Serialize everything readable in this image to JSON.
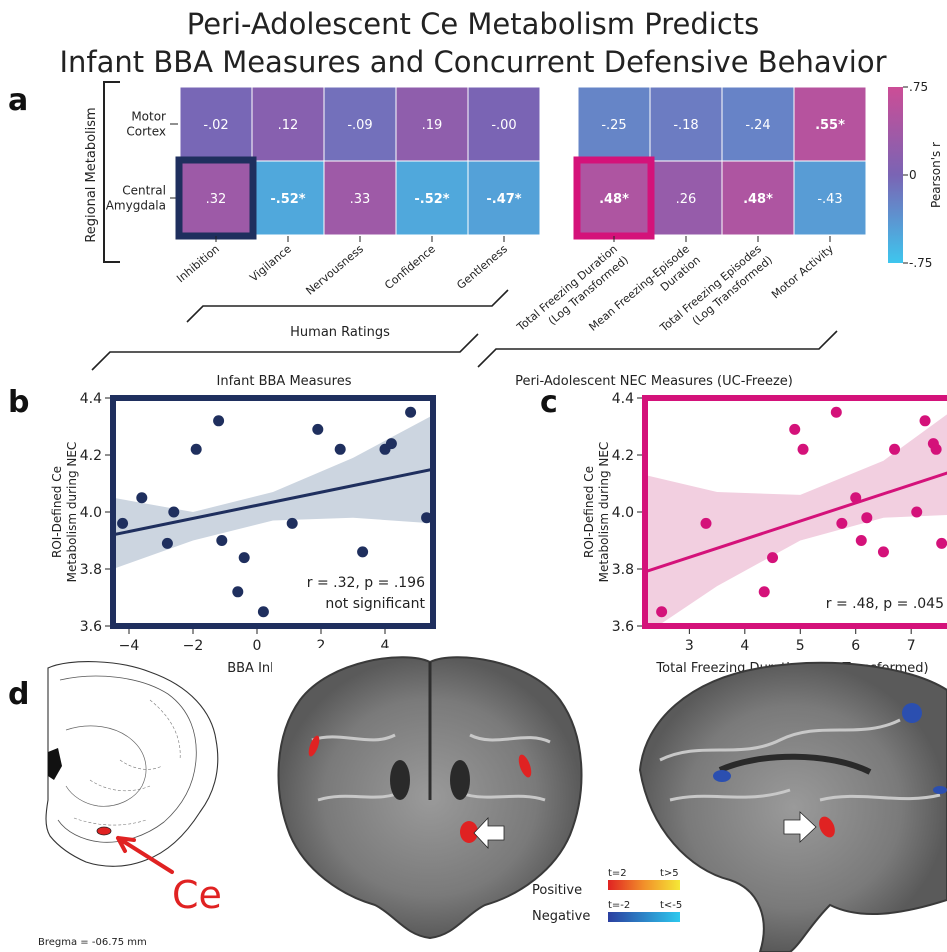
{
  "title": {
    "line1": "Peri-Adolescent Ce Metabolism Predicts",
    "line2": "Infant BBA Measures and Concurrent Defensive Behavior"
  },
  "panels": {
    "a": "a",
    "b": "b",
    "c": "c",
    "d": "d"
  },
  "heatmap": {
    "y_group_label": "Regional Metabolism",
    "rows": [
      "Motor\nCortex",
      "Central\nAmygdala"
    ],
    "columns": [
      "Inhibition",
      "Vigilance",
      "Nervousness",
      "Confidence",
      "Gentleness",
      "Total Freezing Duration\n(Log Transformed)",
      "Mean Freezing-Episode\nDuration",
      "Total Freezing Episodes\n(Log Transformed)",
      "Motor Activity"
    ],
    "groups": {
      "human_ratings": "Human Ratings",
      "infant_bba": "Infant BBA Measures",
      "nec": "Peri-Adolescent NEC Measures (UC-Freeze)"
    },
    "colorbar": {
      "label": "Pearson's r",
      "ticks": [
        ".75",
        "0",
        "-.75"
      ],
      "min": -0.75,
      "max": 0.75,
      "colors": [
        "#3ec6ee",
        "#7a64b4",
        "#cc4d96"
      ]
    }
  },
  "chart_data": [
    {
      "type": "heatmap",
      "rows": [
        "Motor Cortex",
        "Central Amygdala"
      ],
      "columns": [
        "Inhibition",
        "Vigilance",
        "Nervousness",
        "Confidence",
        "Gentleness",
        "Total Freezing Duration (Log Transformed)",
        "Mean Freezing-Episode Duration",
        "Total Freezing Episodes (Log Transformed)",
        "Motor Activity"
      ],
      "values": [
        [
          -0.02,
          0.12,
          -0.09,
          0.19,
          -0.0,
          -0.25,
          -0.18,
          -0.24,
          0.55
        ],
        [
          0.32,
          -0.52,
          0.33,
          -0.52,
          -0.47,
          0.48,
          0.26,
          0.48,
          -0.43
        ]
      ],
      "labels": [
        [
          "-.02",
          ".12",
          "-.09",
          ".19",
          "-.00",
          "-.25",
          "-.18",
          "-.24",
          ".55*"
        ],
        [
          ".32",
          "-.52*",
          ".33",
          "-.52*",
          "-.47*",
          ".48*",
          ".26",
          ".48*",
          "-.43"
        ]
      ],
      "bold": [
        [
          false,
          false,
          false,
          false,
          false,
          false,
          false,
          false,
          true
        ],
        [
          false,
          true,
          false,
          true,
          true,
          true,
          false,
          true,
          false
        ]
      ],
      "highlights": [
        {
          "row": 1,
          "col": 0,
          "color": "#1f2f5e"
        },
        {
          "row": 1,
          "col": 5,
          "color": "#d4127a"
        }
      ]
    },
    {
      "type": "scatter",
      "xlabel": "BBA Inhibition",
      "ylabel": "ROI-Defined Ce\nMetabolism during NEC",
      "xlim": [
        -4.5,
        5.5
      ],
      "ylim": [
        3.6,
        4.4
      ],
      "xticks": [
        -4,
        -2,
        0,
        2,
        4
      ],
      "yticks": [
        3.6,
        3.8,
        4.0,
        4.2,
        4.4
      ],
      "annotation": "r = .32,  p = .196",
      "annotation2": "not significant",
      "color": "#1f2f5e",
      "band_color": "#ccd5e0",
      "points": [
        [
          -4.2,
          3.96
        ],
        [
          -3.6,
          4.05
        ],
        [
          -2.8,
          3.89
        ],
        [
          -2.6,
          4.0
        ],
        [
          -1.9,
          4.22
        ],
        [
          -1.2,
          4.32
        ],
        [
          -1.1,
          3.9
        ],
        [
          -0.6,
          3.72
        ],
        [
          -0.4,
          3.84
        ],
        [
          0.2,
          3.65
        ],
        [
          1.1,
          3.96
        ],
        [
          1.9,
          4.29
        ],
        [
          2.6,
          4.22
        ],
        [
          3.3,
          3.86
        ],
        [
          4.0,
          4.22
        ],
        [
          4.2,
          4.24
        ],
        [
          4.8,
          4.35
        ],
        [
          5.3,
          3.98
        ]
      ],
      "fit": {
        "x": [
          -4.5,
          5.5
        ],
        "y": [
          3.92,
          4.15
        ]
      },
      "band": {
        "x": [
          -4.5,
          -2.0,
          0.5,
          3.0,
          5.5
        ],
        "lower": [
          3.8,
          3.9,
          3.97,
          3.98,
          3.96
        ],
        "upper": [
          4.05,
          4.0,
          4.07,
          4.19,
          4.34
        ]
      }
    },
    {
      "type": "scatter",
      "xlabel": "Total Freezing Duration (Log Transformed)",
      "ylabel": "ROI-Defined Ce\nMetabolism during NEC",
      "xlim": [
        2.2,
        7.7
      ],
      "ylim": [
        3.6,
        4.4
      ],
      "xticks": [
        3,
        4,
        5,
        6,
        7
      ],
      "yticks": [
        3.6,
        3.8,
        4.0,
        4.2,
        4.4
      ],
      "annotation": "r = .48,  p = .045",
      "color": "#d4127a",
      "band_color": "#f2cfe0",
      "points": [
        [
          2.5,
          3.65
        ],
        [
          3.3,
          3.96
        ],
        [
          4.35,
          3.72
        ],
        [
          4.5,
          3.84
        ],
        [
          4.9,
          4.29
        ],
        [
          5.05,
          4.22
        ],
        [
          5.65,
          4.35
        ],
        [
          5.75,
          3.96
        ],
        [
          6.0,
          4.05
        ],
        [
          6.1,
          3.9
        ],
        [
          6.2,
          3.98
        ],
        [
          6.5,
          3.86
        ],
        [
          6.7,
          4.22
        ],
        [
          7.1,
          4.0
        ],
        [
          7.25,
          4.32
        ],
        [
          7.4,
          4.24
        ],
        [
          7.45,
          4.22
        ],
        [
          7.55,
          3.89
        ]
      ],
      "fit": {
        "x": [
          2.2,
          7.7
        ],
        "y": [
          3.79,
          4.14
        ]
      },
      "band": {
        "x": [
          2.2,
          3.5,
          5.0,
          6.5,
          7.7
        ],
        "lower": [
          3.57,
          3.74,
          3.9,
          3.98,
          3.99
        ],
        "upper": [
          4.13,
          4.07,
          4.06,
          4.18,
          4.35
        ]
      }
    }
  ],
  "panel_d": {
    "bregma": "Bregma = -06.75 mm",
    "ce_label": "Ce",
    "legend": {
      "positive": "Positive",
      "negative": "Negative",
      "pos_low": "t=2",
      "pos_high": "t>5",
      "neg_low": "t=-2",
      "neg_high": "t<-5"
    },
    "colors": {
      "positive": "#e02222",
      "negative": "#2b4fb0",
      "arrow": "#e02222"
    }
  }
}
